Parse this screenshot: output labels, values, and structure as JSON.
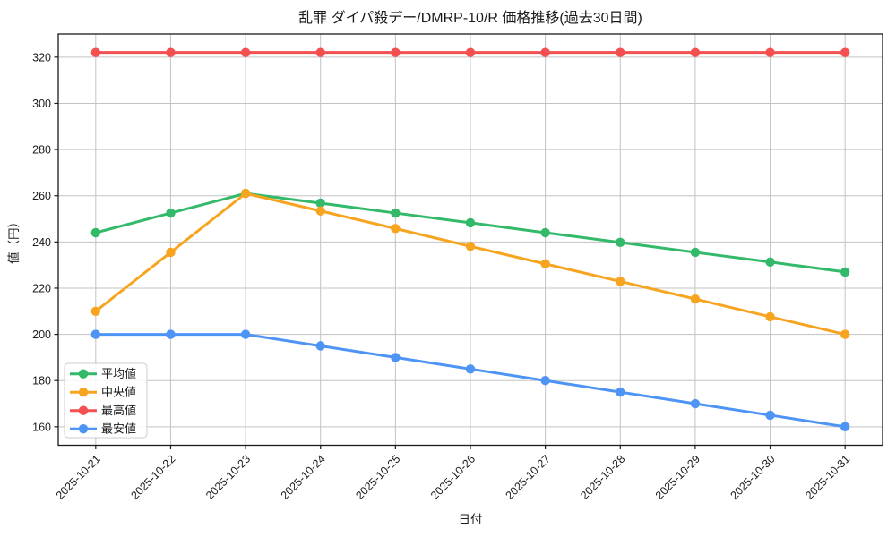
{
  "chart_data": {
    "type": "line",
    "title": "乱罪 ダイパ殺デー/DMRP-10/R 価格推移(過去30日間)",
    "xlabel": "日付",
    "ylabel": "値（円）",
    "categories": [
      "2025-10-21",
      "2025-10-22",
      "2025-10-23",
      "2025-10-24",
      "2025-10-25",
      "2025-10-26",
      "2025-10-27",
      "2025-10-28",
      "2025-10-29",
      "2025-10-30",
      "2025-10-31"
    ],
    "series": [
      {
        "name": "平均値",
        "color": "#32b969",
        "values": [
          244,
          252.5,
          261,
          256.8,
          252.5,
          248.3,
          244,
          239.8,
          235.5,
          231.3,
          227
        ]
      },
      {
        "name": "中央値",
        "color": "#f7a420",
        "values": [
          210,
          235.5,
          261,
          253.4,
          245.8,
          238.1,
          230.5,
          222.9,
          215.3,
          207.6,
          200
        ]
      },
      {
        "name": "最高値",
        "color": "#f45050",
        "values": [
          322,
          322,
          322,
          322,
          322,
          322,
          322,
          322,
          322,
          322,
          322
        ]
      },
      {
        "name": "最安値",
        "color": "#4d94f5",
        "values": [
          200,
          200,
          200,
          195,
          190,
          185,
          180,
          175,
          170,
          165,
          160
        ]
      }
    ],
    "ylim": [
      152,
      330
    ],
    "yticks": [
      160,
      180,
      200,
      220,
      240,
      260,
      280,
      300,
      320
    ],
    "grid": true,
    "grid_color": "#c3c3c3",
    "axis_color": "#1b1b1b",
    "legend_position": "lower-left",
    "legend_bg": "rgba(255,255,255,0.85)",
    "legend_border": "#cccccc"
  }
}
